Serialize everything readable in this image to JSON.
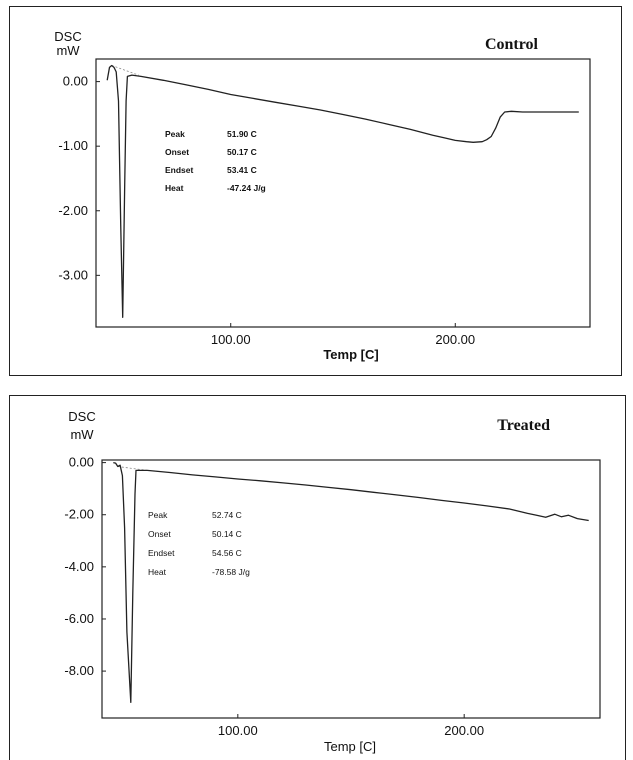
{
  "chart_data": [
    {
      "type": "line",
      "title": "Control",
      "ylabel_line1": "DSC",
      "ylabel_line2": "mW",
      "xlabel": "Temp   [C]",
      "xlim": [
        40,
        260
      ],
      "ylim": [
        -3.8,
        0.35
      ],
      "y_ticks": [
        "0.00",
        "-1.00",
        "-2.00",
        "-3.00"
      ],
      "y_tick_values": [
        0,
        -1,
        -2,
        -3
      ],
      "x_ticks": [
        "100.00",
        "200.00"
      ],
      "x_tick_values": [
        100,
        200
      ],
      "annotations": [
        {
          "label": "Peak",
          "value": "51.90 C"
        },
        {
          "label": "Onset",
          "value": "50.17 C"
        },
        {
          "label": "Endset",
          "value": "53.41 C"
        },
        {
          "label": "Heat",
          "value": "-47.24 J/g"
        }
      ],
      "series": [
        {
          "x": [
            45,
            46,
            47,
            48,
            49,
            50,
            51,
            51.9,
            52.8,
            53.4,
            54,
            56,
            60,
            70,
            80,
            90,
            100,
            110,
            120,
            130,
            140,
            150,
            160,
            170,
            180,
            190,
            195,
            200,
            205,
            208,
            212,
            214,
            216,
            218,
            220,
            222,
            225,
            230,
            240,
            250,
            255
          ],
          "y": [
            0.02,
            0.22,
            0.25,
            0.22,
            0.15,
            -0.3,
            -2.2,
            -3.65,
            -1.6,
            -0.3,
            0.08,
            0.1,
            0.08,
            0.02,
            -0.05,
            -0.12,
            -0.2,
            -0.26,
            -0.32,
            -0.38,
            -0.44,
            -0.51,
            -0.58,
            -0.66,
            -0.74,
            -0.83,
            -0.87,
            -0.91,
            -0.93,
            -0.94,
            -0.93,
            -0.9,
            -0.85,
            -0.72,
            -0.55,
            -0.47,
            -0.46,
            -0.47,
            -0.47,
            -0.47,
            -0.47
          ]
        }
      ]
    },
    {
      "type": "line",
      "title": "Treated",
      "ylabel_line1": "DSC",
      "ylabel_line2": "mW",
      "xlabel": "Temp   [C]",
      "xlim": [
        40,
        260
      ],
      "ylim": [
        -9.8,
        0.1
      ],
      "y_ticks": [
        "0.00",
        "-2.00",
        "-4.00",
        "-6.00",
        "-8.00"
      ],
      "y_tick_values": [
        0,
        -2,
        -4,
        -6,
        -8
      ],
      "x_ticks": [
        "100.00",
        "200.00"
      ],
      "x_tick_values": [
        100,
        200
      ],
      "annotations": [
        {
          "label": "Peak",
          "value": "52.74 C"
        },
        {
          "label": "Onset",
          "value": "50.14 C"
        },
        {
          "label": "Endset",
          "value": "54.56 C"
        },
        {
          "label": "Heat",
          "value": "-78.58 J/g"
        }
      ],
      "series": [
        {
          "x": [
            45,
            46,
            47,
            48,
            49,
            50,
            51,
            52.74,
            53.6,
            54.56,
            55,
            57,
            60,
            70,
            80,
            90,
            100,
            110,
            120,
            130,
            140,
            150,
            160,
            170,
            180,
            190,
            200,
            210,
            220,
            228,
            232,
            236,
            240,
            243,
            246,
            250,
            255
          ],
          "y": [
            0.0,
            -0.02,
            -0.15,
            -0.1,
            -0.5,
            -2.5,
            -6.5,
            -9.2,
            -5.0,
            -1.2,
            -0.3,
            -0.3,
            -0.3,
            -0.38,
            -0.47,
            -0.55,
            -0.63,
            -0.7,
            -0.78,
            -0.86,
            -0.95,
            -1.04,
            -1.14,
            -1.24,
            -1.34,
            -1.45,
            -1.55,
            -1.66,
            -1.78,
            -1.95,
            -2.02,
            -2.1,
            -1.98,
            -2.08,
            -2.02,
            -2.15,
            -2.22
          ]
        }
      ]
    }
  ]
}
